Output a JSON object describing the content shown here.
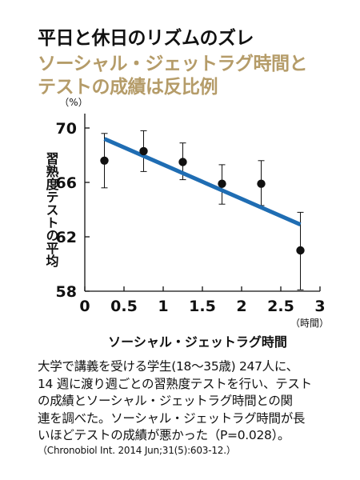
{
  "header": {
    "title": "平日と休日のリズムのズレ",
    "subtitle_line1": "ソーシャル・ジェットラグ時間と",
    "subtitle_line2": "テストの成績は反比例"
  },
  "colors": {
    "subtitle": "#b59c69",
    "trend_line": "#1f6db3",
    "points": "#111111"
  },
  "chart_data": {
    "type": "scatter",
    "xlabel": "ソーシャル・ジェットラグ時間",
    "x_unit": "（時間）",
    "ylabel": "習熟度テストの平均",
    "y_unit": "（%）",
    "xlim": [
      0,
      3
    ],
    "ylim": [
      58,
      70
    ],
    "x_ticks": [
      "0",
      "0.5",
      "1",
      "1.5",
      "2",
      "2.5",
      "3"
    ],
    "y_ticks": [
      "58",
      "62",
      "66",
      "70"
    ],
    "grid": false,
    "points": [
      {
        "x": 0.25,
        "y": 67.6,
        "err_low": 65.6,
        "err_high": 69.6
      },
      {
        "x": 0.75,
        "y": 68.3,
        "err_low": 66.8,
        "err_high": 69.8
      },
      {
        "x": 1.25,
        "y": 67.5,
        "err_low": 66.2,
        "err_high": 68.9
      },
      {
        "x": 1.75,
        "y": 65.9,
        "err_low": 64.4,
        "err_high": 67.3
      },
      {
        "x": 2.25,
        "y": 65.9,
        "err_low": 64.3,
        "err_high": 67.6
      },
      {
        "x": 2.75,
        "y": 61.0,
        "err_low": 58.1,
        "err_high": 63.8
      }
    ],
    "trend_line": {
      "x": [
        0.25,
        2.75
      ],
      "y": [
        69.2,
        62.9
      ]
    }
  },
  "description": {
    "line1": "大学で講義を受ける学生(18〜35歳) 247人に、",
    "line2": "14 週に渡り週ごとの習熟度テストを行い、テスト",
    "line3": "の成績とソーシャル・ジェットラグ時間との関",
    "line4": "連を調べた。ソーシャル・ジェットラグ時間が長",
    "line5": "いほどテストの成績が悪かった（P=0.028）。"
  },
  "citation": "（Chronobiol Int. 2014 Jun;31(5):603-12.）"
}
